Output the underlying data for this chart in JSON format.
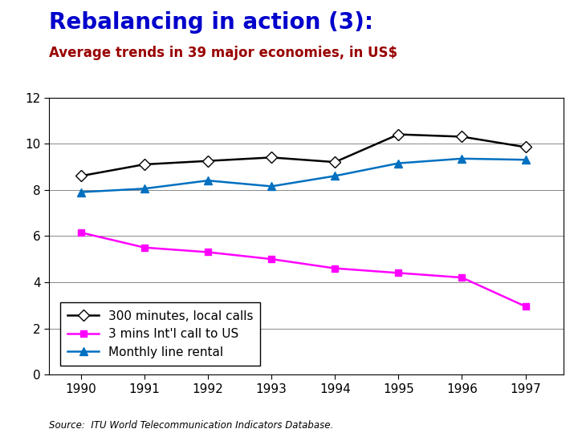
{
  "title": "Rebalancing in action (3):",
  "subtitle": "Average trends in 39 major economies, in US$",
  "title_color": "#0000CC",
  "subtitle_color": "#990000",
  "source": "Source:  ITU World Telecommunication Indicators Database.",
  "years": [
    1990,
    1991,
    1992,
    1993,
    1994,
    1995,
    1996,
    1997
  ],
  "local_calls": [
    8.6,
    9.1,
    9.25,
    9.4,
    9.2,
    10.4,
    10.3,
    9.85
  ],
  "intl_call": [
    6.15,
    5.5,
    5.3,
    5.0,
    4.6,
    4.4,
    4.2,
    2.95
  ],
  "line_rental": [
    7.9,
    8.05,
    8.4,
    8.15,
    8.6,
    9.15,
    9.35,
    9.3
  ],
  "ylim": [
    0,
    12
  ],
  "yticks": [
    0,
    2,
    4,
    6,
    8,
    10,
    12
  ],
  "local_calls_color": "#000000",
  "intl_call_color": "#FF00FF",
  "line_rental_color": "#0070C0",
  "bg_color": "#FFFFFF",
  "legend_label_local": "300 minutes, local calls",
  "legend_label_intl": "3 mins Int'l call to US",
  "legend_label_rental": "Monthly line rental",
  "title_fontsize": 20,
  "subtitle_fontsize": 12,
  "tick_fontsize": 11,
  "legend_fontsize": 11,
  "source_fontsize": 8.5
}
